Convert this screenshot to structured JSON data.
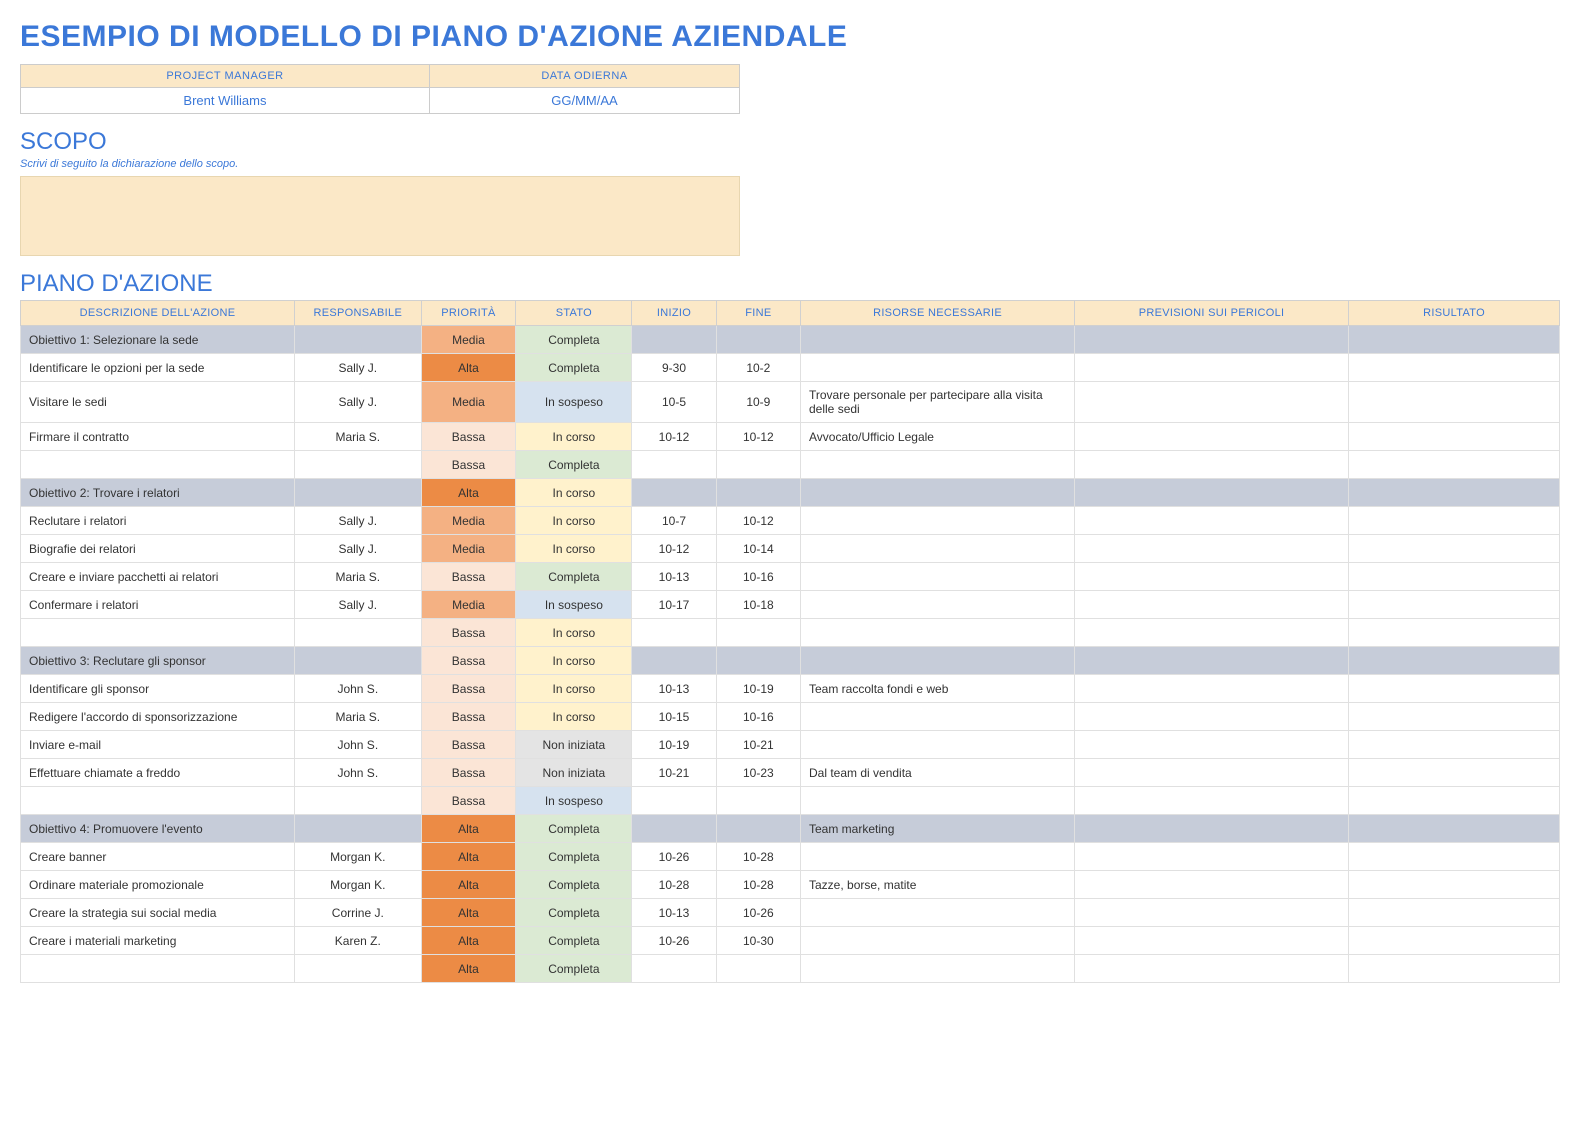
{
  "title": "ESEMPIO DI MODELLO DI PIANO D'AZIONE AZIENDALE",
  "meta": {
    "pm_header": "PROJECT MANAGER",
    "date_header": "DATA ODIERNA",
    "pm_value": "Brent Williams",
    "date_value": "GG/MM/AA"
  },
  "scope": {
    "heading": "SCOPO",
    "hint": "Scrivi di seguito la dichiarazione dello scopo."
  },
  "plan": {
    "heading": "PIANO D'AZIONE",
    "columns": [
      "DESCRIZIONE DELL'AZIONE",
      "RESPONSABILE",
      "PRIORITÀ",
      "STATO",
      "INIZIO",
      "FINE",
      "RISORSE NECESSARIE",
      "PREVISIONI SUI PERICOLI",
      "RISULTATO"
    ],
    "priority_colors": {
      "Alta": "#ec8b45",
      "Media": "#f4b183",
      "Bassa": "#fbe5d6"
    },
    "status_colors": {
      "Completa": "#dbead3",
      "In sospeso": "#d6e2ef",
      "In corso": "#fff2cc",
      "Non iniziata": "#e4e4e4"
    },
    "rows": [
      {
        "type": "objective",
        "desc": "Obiettivo 1: Selezionare la sede",
        "resp": "",
        "prio": "Media",
        "stat": "Completa",
        "start": "",
        "end": "",
        "res": "",
        "risk": "",
        "out": ""
      },
      {
        "type": "task",
        "desc": "Identificare le opzioni per la sede",
        "resp": "Sally J.",
        "prio": "Alta",
        "stat": "Completa",
        "start": "9-30",
        "end": "10-2",
        "res": "",
        "risk": "",
        "out": ""
      },
      {
        "type": "task",
        "desc": "Visitare le sedi",
        "resp": "Sally J.",
        "prio": "Media",
        "stat": "In sospeso",
        "start": "10-5",
        "end": "10-9",
        "res": "Trovare personale per partecipare alla visita delle sedi",
        "risk": "",
        "out": ""
      },
      {
        "type": "task",
        "desc": "Firmare il contratto",
        "resp": "Maria S.",
        "prio": "Bassa",
        "stat": "In corso",
        "start": "10-12",
        "end": "10-12",
        "res": "Avvocato/Ufficio Legale",
        "risk": "",
        "out": ""
      },
      {
        "type": "task",
        "desc": "",
        "resp": "",
        "prio": "Bassa",
        "stat": "Completa",
        "start": "",
        "end": "",
        "res": "",
        "risk": "",
        "out": ""
      },
      {
        "type": "objective",
        "desc": "Obiettivo 2: Trovare i relatori",
        "resp": "",
        "prio": "Alta",
        "stat": "In corso",
        "start": "",
        "end": "",
        "res": "",
        "risk": "",
        "out": ""
      },
      {
        "type": "task",
        "desc": "Reclutare i relatori",
        "resp": "Sally J.",
        "prio": "Media",
        "stat": "In corso",
        "start": "10-7",
        "end": "10-12",
        "res": "",
        "risk": "",
        "out": ""
      },
      {
        "type": "task",
        "desc": "Biografie dei relatori",
        "resp": "Sally J.",
        "prio": "Media",
        "stat": "In corso",
        "start": "10-12",
        "end": "10-14",
        "res": "",
        "risk": "",
        "out": ""
      },
      {
        "type": "task",
        "desc": "Creare e inviare pacchetti ai relatori",
        "resp": "Maria S.",
        "prio": "Bassa",
        "stat": "Completa",
        "start": "10-13",
        "end": "10-16",
        "res": "",
        "risk": "",
        "out": ""
      },
      {
        "type": "task",
        "desc": "Confermare i relatori",
        "resp": "Sally J.",
        "prio": "Media",
        "stat": "In sospeso",
        "start": "10-17",
        "end": "10-18",
        "res": "",
        "risk": "",
        "out": ""
      },
      {
        "type": "task",
        "desc": "",
        "resp": "",
        "prio": "Bassa",
        "stat": "In corso",
        "start": "",
        "end": "",
        "res": "",
        "risk": "",
        "out": ""
      },
      {
        "type": "objective",
        "desc": "Obiettivo 3: Reclutare gli sponsor",
        "resp": "",
        "prio": "Bassa",
        "stat": "In corso",
        "start": "",
        "end": "",
        "res": "",
        "risk": "",
        "out": ""
      },
      {
        "type": "task",
        "desc": "Identificare gli sponsor",
        "resp": "John S.",
        "prio": "Bassa",
        "stat": "In corso",
        "start": "10-13",
        "end": "10-19",
        "res": "Team raccolta fondi e web",
        "risk": "",
        "out": ""
      },
      {
        "type": "task",
        "desc": "Redigere l'accordo di sponsorizzazione",
        "resp": "Maria S.",
        "prio": "Bassa",
        "stat": "In corso",
        "start": "10-15",
        "end": "10-16",
        "res": "",
        "risk": "",
        "out": ""
      },
      {
        "type": "task",
        "desc": "Inviare e-mail",
        "resp": "John S.",
        "prio": "Bassa",
        "stat": "Non iniziata",
        "start": "10-19",
        "end": "10-21",
        "res": "",
        "risk": "",
        "out": ""
      },
      {
        "type": "task",
        "desc": "Effettuare chiamate a freddo",
        "resp": "John S.",
        "prio": "Bassa",
        "stat": "Non iniziata",
        "start": "10-21",
        "end": "10-23",
        "res": "Dal team di vendita",
        "risk": "",
        "out": ""
      },
      {
        "type": "task",
        "desc": "",
        "resp": "",
        "prio": "Bassa",
        "stat": "In sospeso",
        "start": "",
        "end": "",
        "res": "",
        "risk": "",
        "out": ""
      },
      {
        "type": "objective",
        "desc": "Obiettivo 4: Promuovere l'evento",
        "resp": "",
        "prio": "Alta",
        "stat": "Completa",
        "start": "",
        "end": "",
        "res": "Team marketing",
        "risk": "",
        "out": ""
      },
      {
        "type": "task",
        "desc": "Creare banner",
        "resp": "Morgan K.",
        "prio": "Alta",
        "stat": "Completa",
        "start": "10-26",
        "end": "10-28",
        "res": "",
        "risk": "",
        "out": ""
      },
      {
        "type": "task",
        "desc": "Ordinare materiale promozionale",
        "resp": "Morgan K.",
        "prio": "Alta",
        "stat": "Completa",
        "start": "10-28",
        "end": "10-28",
        "res": "Tazze, borse, matite",
        "risk": "",
        "out": ""
      },
      {
        "type": "task",
        "desc": "Creare la strategia sui social media",
        "resp": "Corrine J.",
        "prio": "Alta",
        "stat": "Completa",
        "start": "10-13",
        "end": "10-26",
        "res": "",
        "risk": "",
        "out": ""
      },
      {
        "type": "task",
        "desc": "Creare i materiali marketing",
        "resp": "Karen Z.",
        "prio": "Alta",
        "stat": "Completa",
        "start": "10-26",
        "end": "10-30",
        "res": "",
        "risk": "",
        "out": ""
      },
      {
        "type": "task",
        "desc": "",
        "resp": "",
        "prio": "Alta",
        "stat": "Completa",
        "start": "",
        "end": "",
        "res": "",
        "risk": "",
        "out": ""
      }
    ]
  }
}
